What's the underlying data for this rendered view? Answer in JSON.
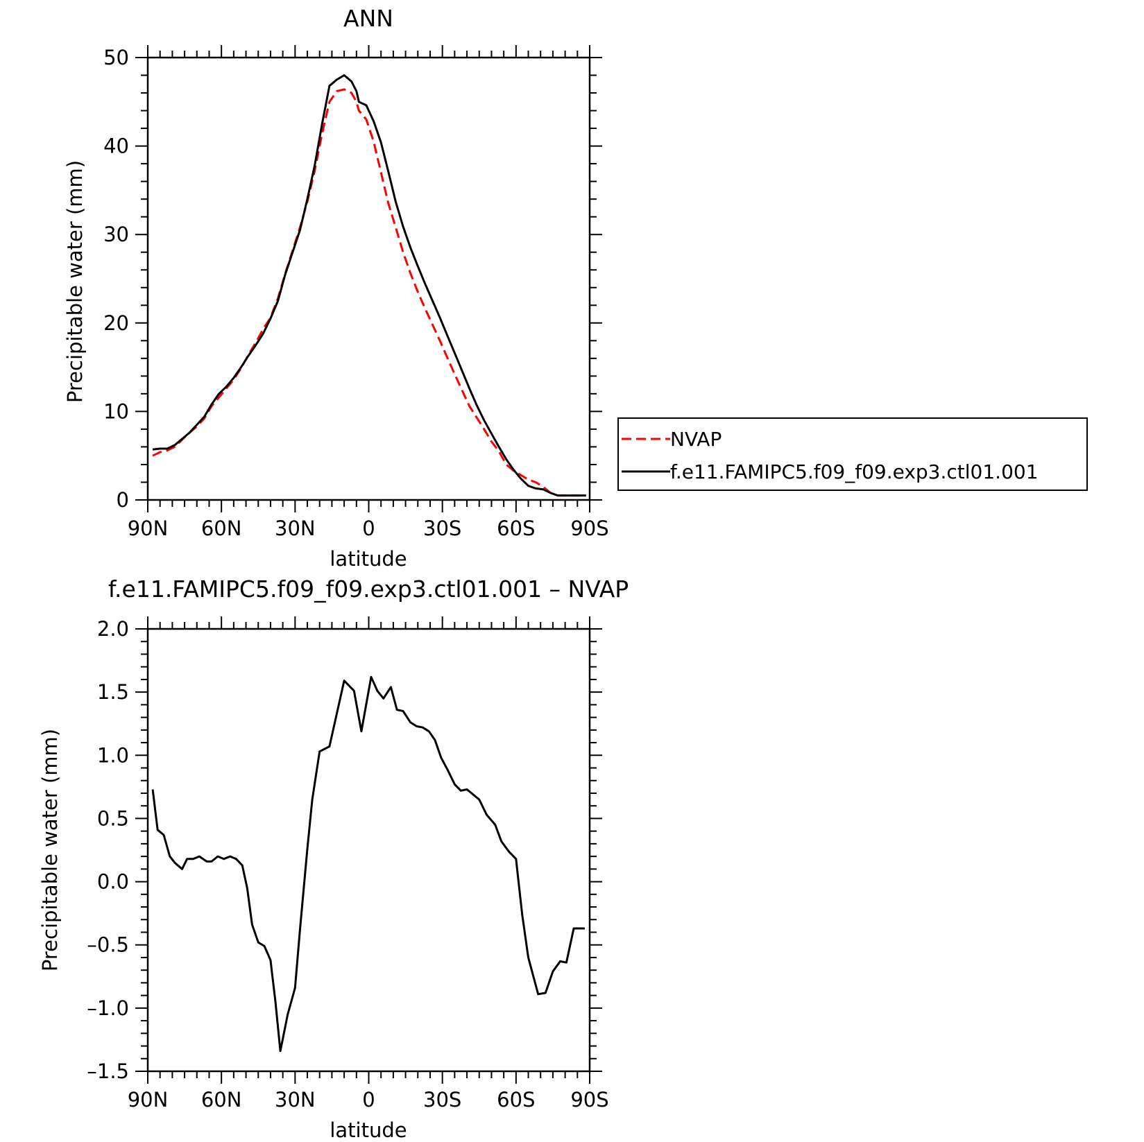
{
  "chart_data": [
    {
      "type": "line",
      "title": "ANN",
      "xlabel": "latitude",
      "ylabel": "Precipitable water (mm)",
      "xlim": [
        -90,
        90
      ],
      "ylim": [
        0,
        50
      ],
      "x_tick_labels": [
        "90N",
        "60N",
        "30N",
        "0",
        "30S",
        "60S",
        "90S"
      ],
      "y_tick_labels": [
        "0",
        "10",
        "20",
        "30",
        "40",
        "50"
      ],
      "legend_position": "right",
      "series": [
        {
          "name": "NVAP",
          "color": "#ff0000",
          "dash": "dashed",
          "x": [
            -88,
            -85,
            -82,
            -79,
            -76,
            -73,
            -70,
            -67,
            -64,
            -61,
            -58,
            -55,
            -52,
            -49,
            -46,
            -43,
            -40,
            -37,
            -34,
            -31,
            -28,
            -25,
            -22,
            -19,
            -16,
            -13,
            -10,
            -7,
            -5,
            -4,
            -1,
            2,
            5,
            8,
            11,
            14,
            17,
            20,
            23,
            26,
            29,
            32,
            35,
            38,
            41,
            44,
            47,
            50,
            53,
            56,
            59,
            62,
            65,
            68,
            71,
            74,
            77,
            80,
            83,
            86,
            88.5
          ],
          "y": [
            5.0,
            5.4,
            5.6,
            6.0,
            6.8,
            7.6,
            8.3,
            9.2,
            10.6,
            11.6,
            12.6,
            13.6,
            14.9,
            16.4,
            17.8,
            19.3,
            20.6,
            22.8,
            25.6,
            28.2,
            30.8,
            33.7,
            37.2,
            41.4,
            45.0,
            46.2,
            46.4,
            46.0,
            45.0,
            44.0,
            43.0,
            40.5,
            37.0,
            33.5,
            30.8,
            28.0,
            25.6,
            23.5,
            21.6,
            19.8,
            18.0,
            16.1,
            14.2,
            12.4,
            10.6,
            9.3,
            8.0,
            6.6,
            5.5,
            4.0,
            3.3,
            2.8,
            2.3,
            2.0,
            1.5,
            0.8,
            0.5,
            0.5,
            0.5,
            0.5,
            0.5
          ]
        },
        {
          "name": "f.e11.FAMIPC5.f09_f09.exp3.ctl01.001",
          "color": "#000000",
          "dash": "solid",
          "x": [
            -88,
            -85,
            -82,
            -79,
            -76,
            -73,
            -70,
            -67,
            -64,
            -61,
            -58,
            -55,
            -52,
            -49,
            -46,
            -43,
            -40,
            -37,
            -34,
            -31,
            -28,
            -25,
            -22,
            -19,
            -16,
            -13,
            -10,
            -7,
            -5,
            -4,
            -1,
            2,
            5,
            8,
            11,
            14,
            17,
            20,
            23,
            26,
            29,
            32,
            35,
            38,
            41,
            44,
            47,
            50,
            53,
            56,
            59,
            62,
            65,
            68,
            71,
            74,
            77,
            80,
            83,
            86,
            88.5
          ],
          "y": [
            5.7,
            5.8,
            5.8,
            6.2,
            6.9,
            7.6,
            8.5,
            9.4,
            10.8,
            12.0,
            12.8,
            13.8,
            15.0,
            16.3,
            17.5,
            18.8,
            20.5,
            22.5,
            25.5,
            28.0,
            30.5,
            34.0,
            37.8,
            42.5,
            46.8,
            47.5,
            48.0,
            47.3,
            46.2,
            45.0,
            44.6,
            42.8,
            40.4,
            37.1,
            33.7,
            30.9,
            28.5,
            26.4,
            24.4,
            22.5,
            20.6,
            18.6,
            16.6,
            14.6,
            12.6,
            10.7,
            9.0,
            7.5,
            6.0,
            4.6,
            3.4,
            2.4,
            1.6,
            1.3,
            1.2,
            0.8,
            0.5,
            0.5,
            0.5,
            0.5,
            0.5
          ]
        }
      ]
    },
    {
      "type": "line",
      "title": "f.e11.FAMIPC5.f09_f09.exp3.ctl01.001 – NVAP",
      "xlabel": "latitude",
      "ylabel": "Precipitable water (mm)",
      "xlim": [
        -90,
        90
      ],
      "ylim": [
        -1.5,
        2.0
      ],
      "x_tick_labels": [
        "90N",
        "60N",
        "30N",
        "0",
        "30S",
        "60S",
        "90S"
      ],
      "y_tick_labels": [
        "–1.5",
        "–1.0",
        "–0.5",
        "0.0",
        "0.5",
        "1.0",
        "1.5",
        "2.0"
      ],
      "series": [
        {
          "name": "",
          "color": "#000000",
          "dash": "solid",
          "x": [
            -88,
            -86,
            -83.5,
            -81,
            -79,
            -76,
            -74,
            -71.5,
            -69,
            -66,
            -64,
            -61.5,
            -59,
            -56.5,
            -54,
            -51.5,
            -49.5,
            -47.5,
            -45,
            -42.5,
            -40,
            -38,
            -36,
            -33,
            -30,
            -28,
            -25,
            -23,
            -20,
            -16,
            -13,
            -10,
            -6,
            -3,
            1,
            3.5,
            6,
            9,
            11.5,
            14,
            17,
            19.5,
            22,
            24.5,
            27,
            29.5,
            32,
            35,
            37.5,
            40,
            42.5,
            45,
            48,
            51.5,
            54,
            57,
            60,
            62.5,
            65,
            69,
            72,
            75,
            78,
            80.5,
            83.5,
            86,
            88
          ],
          "y": [
            0.73,
            0.41,
            0.37,
            0.2,
            0.15,
            0.1,
            0.18,
            0.18,
            0.2,
            0.16,
            0.16,
            0.2,
            0.18,
            0.2,
            0.18,
            0.13,
            -0.05,
            -0.34,
            -0.48,
            -0.51,
            -0.62,
            -0.95,
            -1.34,
            -1.05,
            -0.84,
            -0.38,
            0.26,
            0.65,
            1.03,
            1.07,
            1.33,
            1.59,
            1.51,
            1.19,
            1.62,
            1.51,
            1.45,
            1.54,
            1.36,
            1.35,
            1.26,
            1.23,
            1.22,
            1.19,
            1.12,
            0.98,
            0.89,
            0.77,
            0.72,
            0.73,
            0.69,
            0.65,
            0.53,
            0.45,
            0.32,
            0.24,
            0.18,
            -0.26,
            -0.6,
            -0.89,
            -0.88,
            -0.71,
            -0.63,
            -0.64,
            -0.37,
            -0.37,
            -0.37
          ]
        }
      ]
    }
  ]
}
